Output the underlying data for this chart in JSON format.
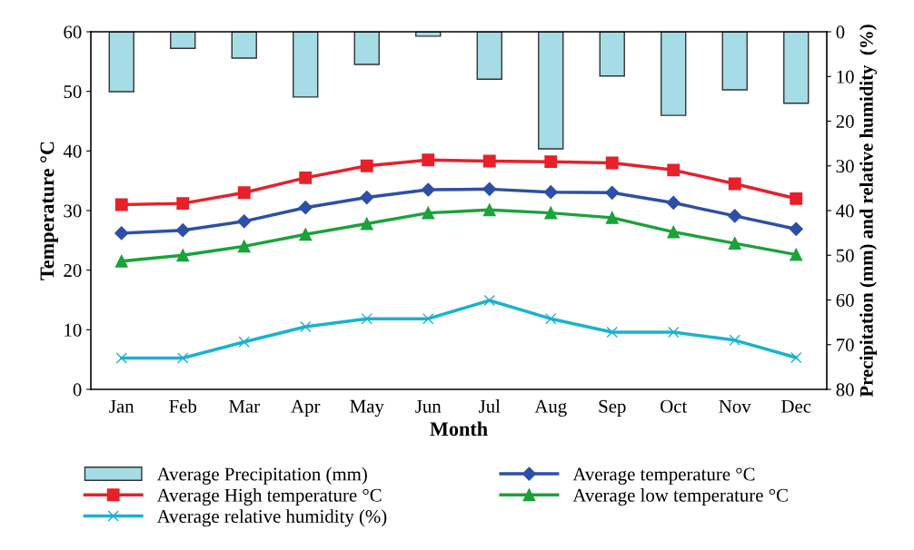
{
  "chart_data": {
    "type": "line",
    "xlabel": "Month",
    "ylabel": "Temperature °C",
    "y2label": "Precipitation (mm) and relative humidity  (%)",
    "categories": [
      "Jan",
      "Feb",
      "Mar",
      "Apr",
      "May",
      "Jun",
      "Jul",
      "Aug",
      "Sep",
      "Oct",
      "Nov",
      "Dec"
    ],
    "ylim": [
      0,
      60
    ],
    "yticks": [
      0,
      10,
      20,
      30,
      40,
      50,
      60
    ],
    "y2lim": [
      80,
      0
    ],
    "y2ticks": [
      0,
      10,
      20,
      30,
      40,
      50,
      60,
      70,
      80
    ],
    "grid": false,
    "legend": "bottom",
    "line_style": "solid",
    "series": [
      {
        "name": "Average Precipitation (mm)",
        "type": "bar",
        "axis": "y2",
        "color": "#a5dce6",
        "values": [
          13.4,
          3.7,
          5.9,
          14.6,
          7.3,
          1.0,
          10.6,
          26.2,
          9.9,
          18.7,
          13.0,
          16.0
        ]
      },
      {
        "name": "Average temperature °C",
        "marker": "diamond",
        "color": "#2e4fa8",
        "values": [
          26.2,
          26.7,
          28.2,
          30.5,
          32.2,
          33.5,
          33.6,
          33.1,
          33.0,
          31.3,
          29.1,
          26.9
        ]
      },
      {
        "name": "Average High temperature °C",
        "marker": "square",
        "color": "#e8202a",
        "values": [
          31.0,
          31.2,
          33.0,
          35.5,
          37.5,
          38.5,
          38.3,
          38.2,
          38.0,
          36.8,
          34.5,
          32.0
        ]
      },
      {
        "name": "Average low temperature °C",
        "marker": "triangle",
        "color": "#1aa33a",
        "values": [
          21.5,
          22.5,
          24.0,
          26.0,
          27.8,
          29.6,
          30.1,
          29.6,
          28.8,
          26.4,
          24.5,
          22.6
        ]
      },
      {
        "name": "Average relative humidity (%)",
        "axis": "y2",
        "marker": "cross",
        "color": "#1ab2d0",
        "values": [
          73,
          73,
          69.4,
          66,
          64.2,
          64.2,
          60.1,
          64.2,
          67.2,
          67.2,
          69,
          72.9
        ]
      }
    ]
  }
}
